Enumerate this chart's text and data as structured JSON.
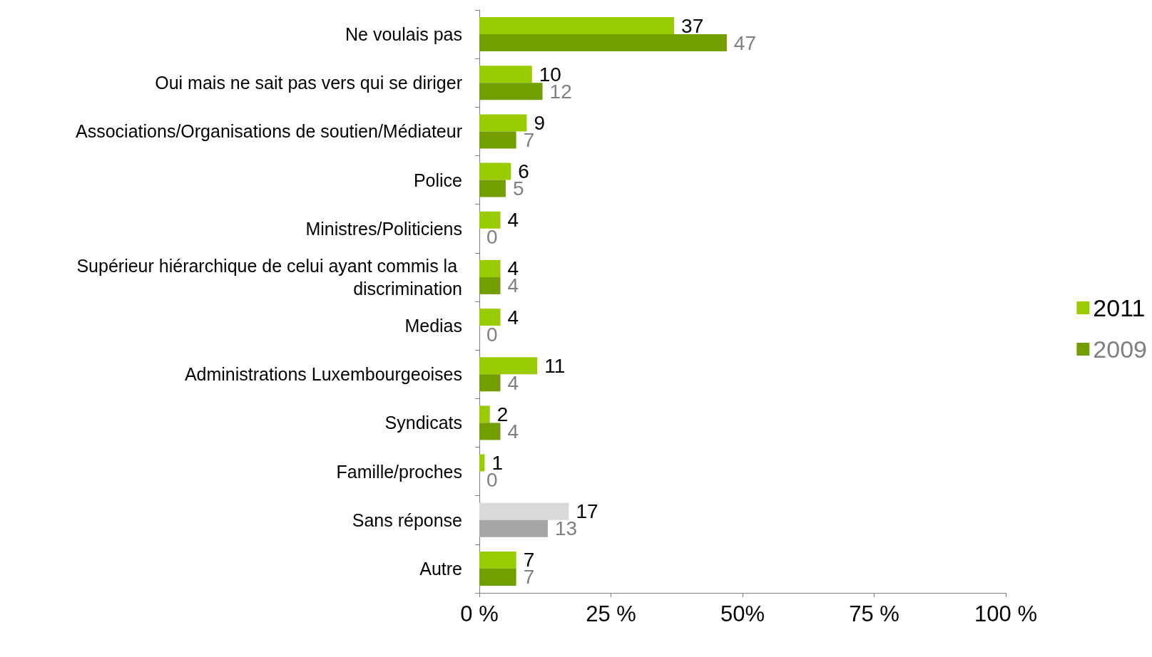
{
  "chart_data": {
    "type": "bar",
    "orientation": "horizontal",
    "categories": [
      "Ne voulais pas",
      "Oui mais ne sait pas vers qui se diriger",
      "Associations/Organisations de soutien/Médiateur",
      "Police",
      "Ministres/Politiciens",
      "Supérieur hiérarchique de celui ayant commis la discrimination",
      "Medias",
      "Administrations Luxembourgeoises",
      "Syndicats",
      "Famille/proches",
      "Sans réponse",
      "Autre"
    ],
    "series": [
      {
        "name": "2011",
        "color": "#99cc00",
        "colors": [
          "#99cc00",
          "#99cc00",
          "#99cc00",
          "#99cc00",
          "#99cc00",
          "#99cc00",
          "#99cc00",
          "#99cc00",
          "#99cc00",
          "#99cc00",
          "#d9d9d9",
          "#99cc00"
        ],
        "values": [
          37,
          10,
          9,
          6,
          4,
          4,
          4,
          11,
          2,
          1,
          17,
          7
        ]
      },
      {
        "name": "2009",
        "color": "#739e00",
        "colors": [
          "#739e00",
          "#739e00",
          "#739e00",
          "#739e00",
          "#739e00",
          "#739e00",
          "#739e00",
          "#739e00",
          "#739e00",
          "#739e00",
          "#a6a6a6",
          "#739e00"
        ],
        "values": [
          47,
          12,
          7,
          5,
          0,
          4,
          0,
          4,
          4,
          0,
          13,
          7
        ]
      }
    ],
    "xlim": [
      0,
      100
    ],
    "xticks": [
      {
        "value": 0,
        "label": "0 %"
      },
      {
        "value": 25,
        "label": "25 %"
      },
      {
        "value": 50,
        "label": "50%"
      },
      {
        "value": 75,
        "label": "75 %"
      },
      {
        "value": 100,
        "label": "100 %"
      }
    ],
    "data_labels": true,
    "grid": false,
    "legend": "right"
  }
}
